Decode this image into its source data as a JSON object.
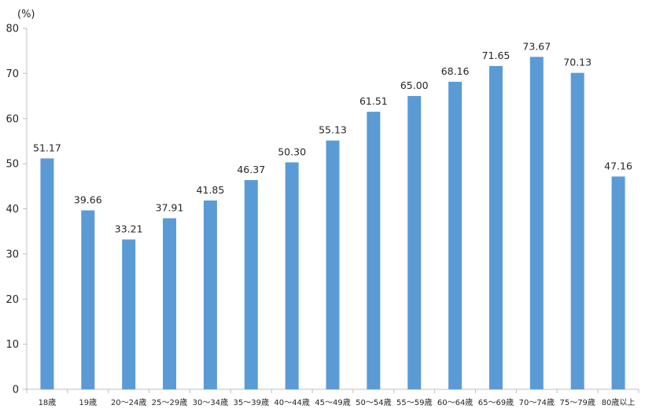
{
  "chart_data": {
    "type": "bar",
    "title": "",
    "xlabel": "",
    "ylabel": "(%)",
    "ylim": [
      0,
      80
    ],
    "yticks": [
      0,
      10,
      20,
      30,
      40,
      50,
      60,
      70,
      80
    ],
    "grid": false,
    "legend": "none",
    "bar_color": "#5b9bd5",
    "categories": [
      "18歳",
      "19歳",
      "20～24歳",
      "25～29歳",
      "30～34歳",
      "35～39歳",
      "40～44歳",
      "45～49歳",
      "50～54歳",
      "55～59歳",
      "60～64歳",
      "65～69歳",
      "70～74歳",
      "75～79歳",
      "80歳以上"
    ],
    "values": [
      51.17,
      39.66,
      33.21,
      37.91,
      41.85,
      46.37,
      50.3,
      55.13,
      61.51,
      65.0,
      68.16,
      71.65,
      73.67,
      70.13,
      47.16
    ],
    "value_labels": [
      "51.17",
      "39.66",
      "33.21",
      "37.91",
      "41.85",
      "46.37",
      "50.30",
      "55.13",
      "61.51",
      "65.00",
      "68.16",
      "71.65",
      "73.67",
      "70.13",
      "47.16"
    ]
  }
}
